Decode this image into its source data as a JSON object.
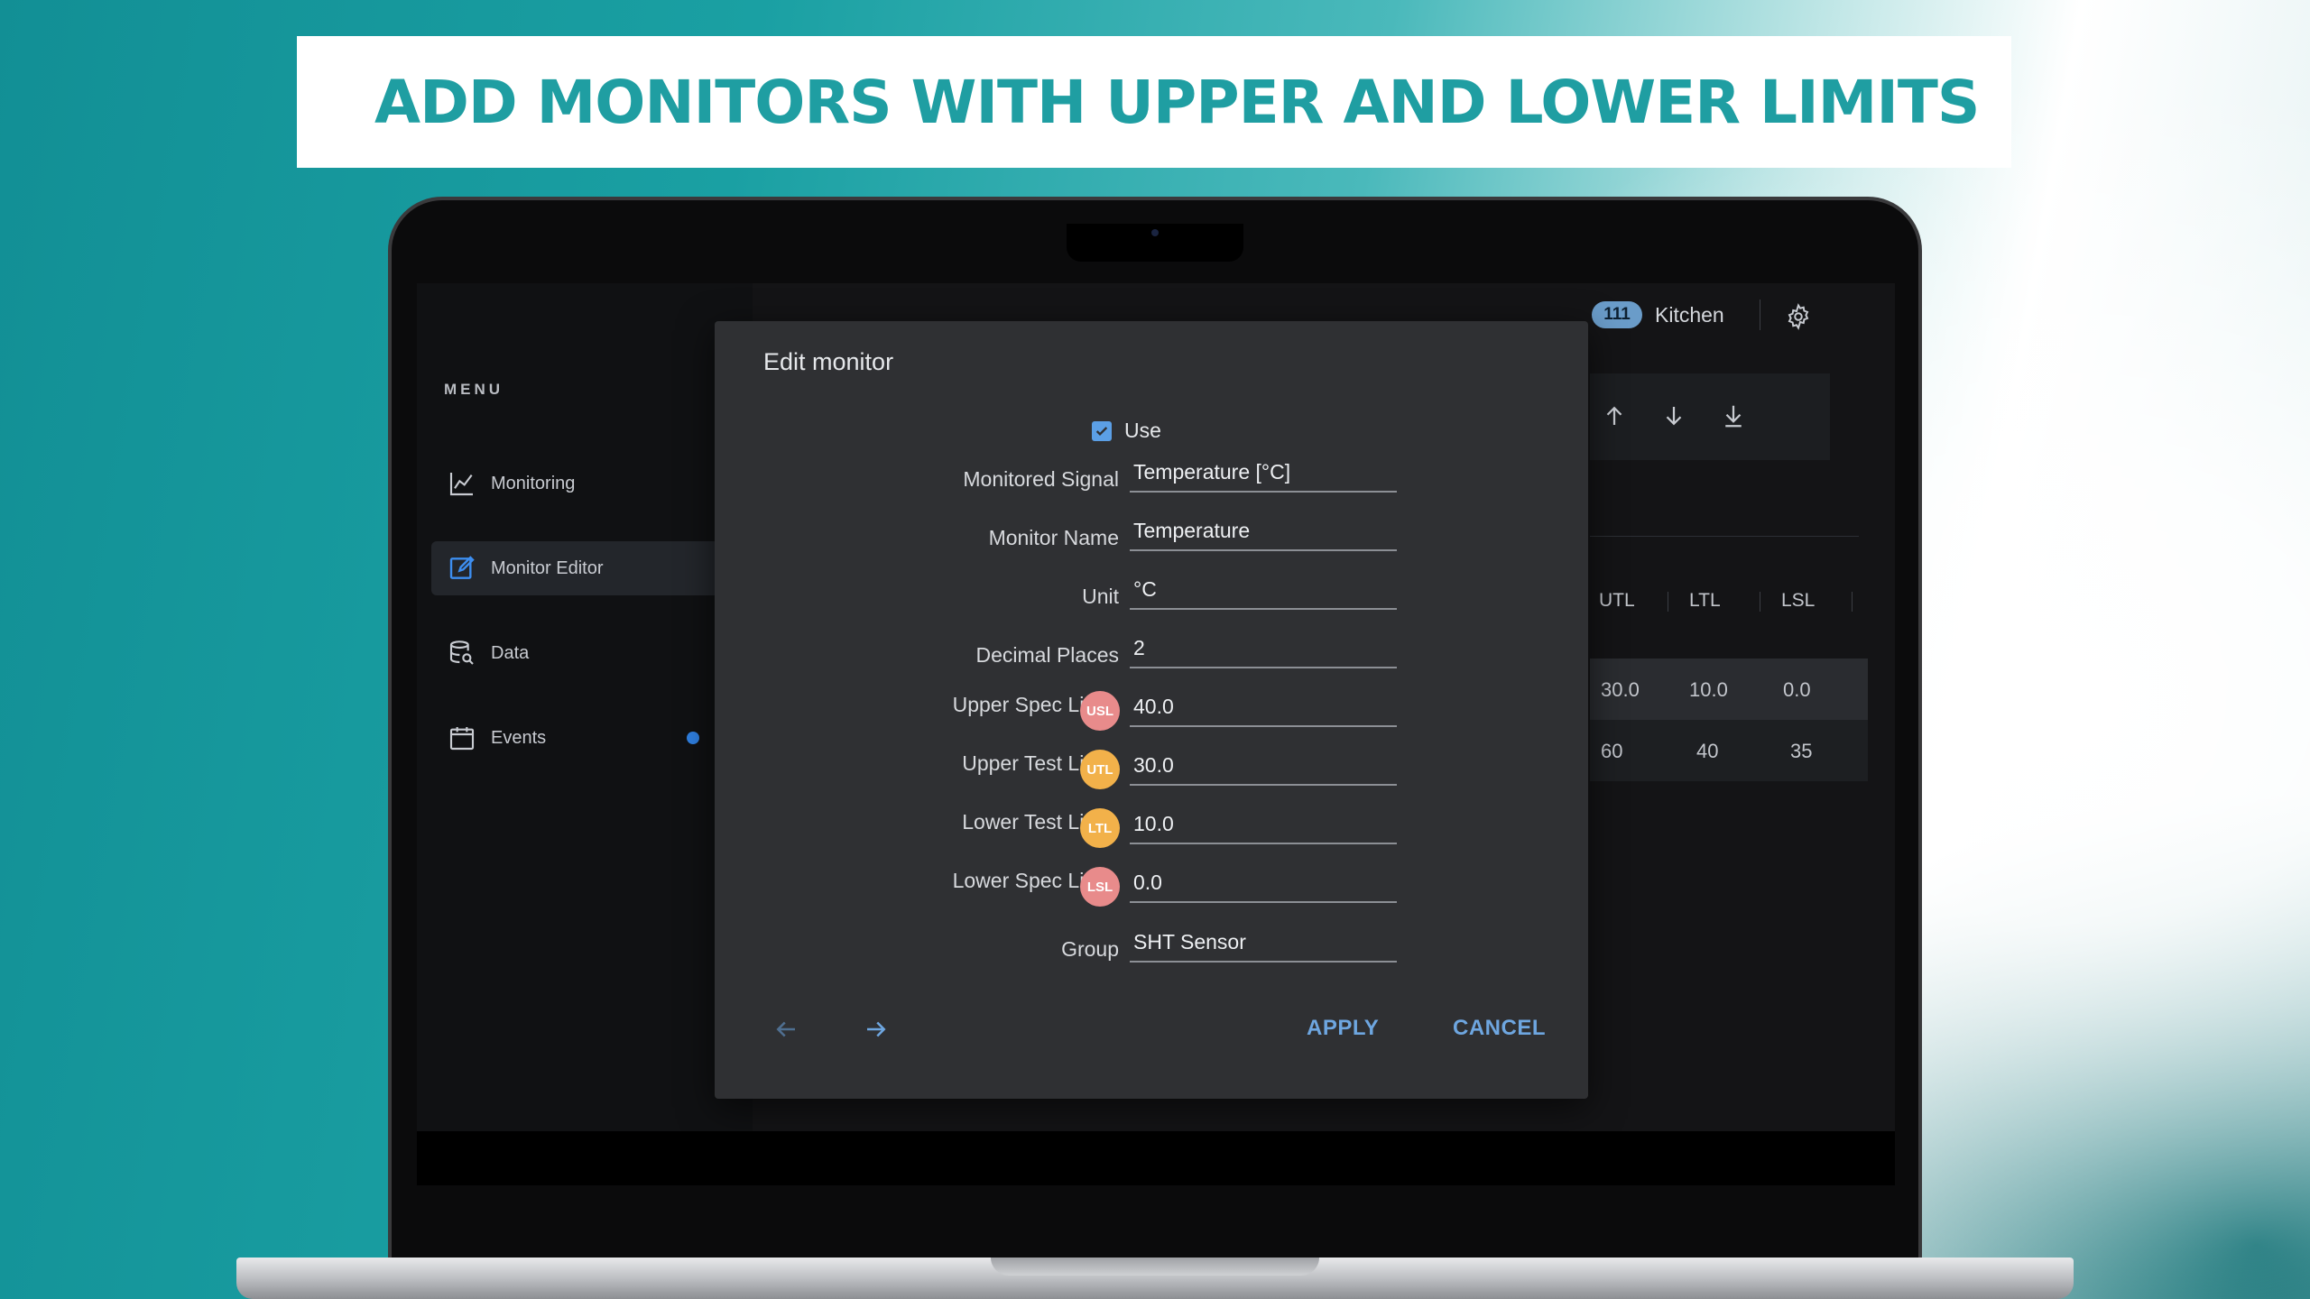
{
  "banner": {
    "title": "ADD MONITORS WITH UPPER AND LOWER LIMITS"
  },
  "sidebar": {
    "menu_label": "MENU",
    "items": [
      {
        "label": "Monitoring",
        "icon": "line-chart-icon"
      },
      {
        "label": "Monitor Editor",
        "icon": "edit-icon",
        "active": true
      },
      {
        "label": "Data",
        "icon": "database-search-icon"
      },
      {
        "label": "Events",
        "icon": "calendar-icon",
        "notification": true
      }
    ]
  },
  "header": {
    "badge": "111",
    "location": "Kitchen",
    "icons": [
      "gear-icon"
    ]
  },
  "toolbar": {
    "icons": [
      "arrow-up-icon",
      "arrow-down-icon",
      "download-icon"
    ]
  },
  "table": {
    "columns": [
      "UTL",
      "LTL",
      "LSL"
    ],
    "rows": [
      [
        "30.0",
        "10.0",
        "0.0"
      ],
      [
        "60",
        "40",
        "35"
      ]
    ]
  },
  "dialog": {
    "title": "Edit monitor",
    "use_label": "Use",
    "use_checked": true,
    "fields": [
      {
        "label": "Monitored Signal",
        "value": "Temperature [°C]"
      },
      {
        "label": "Monitor Name",
        "value": "Temperature"
      },
      {
        "label": "Unit",
        "value": "°C"
      },
      {
        "label": "Decimal Places",
        "value": "2"
      },
      {
        "label": "Upper Spec Limit",
        "badge": "USL",
        "value": "40.0"
      },
      {
        "label": "Upper Test Limit",
        "badge": "UTL",
        "value": "30.0"
      },
      {
        "label": "Lower Test Limit",
        "badge": "LTL",
        "value": "10.0"
      },
      {
        "label": "Lower Spec Limit",
        "badge": "LSL",
        "value": "0.0"
      },
      {
        "label": "Group",
        "value": "SHT Sensor"
      }
    ],
    "apply_label": "APPLY",
    "cancel_label": "CANCEL",
    "colors": {
      "accent": "#6ea6e0",
      "spec_badge": "#e88b8b",
      "test_badge": "#f2b14a"
    }
  }
}
